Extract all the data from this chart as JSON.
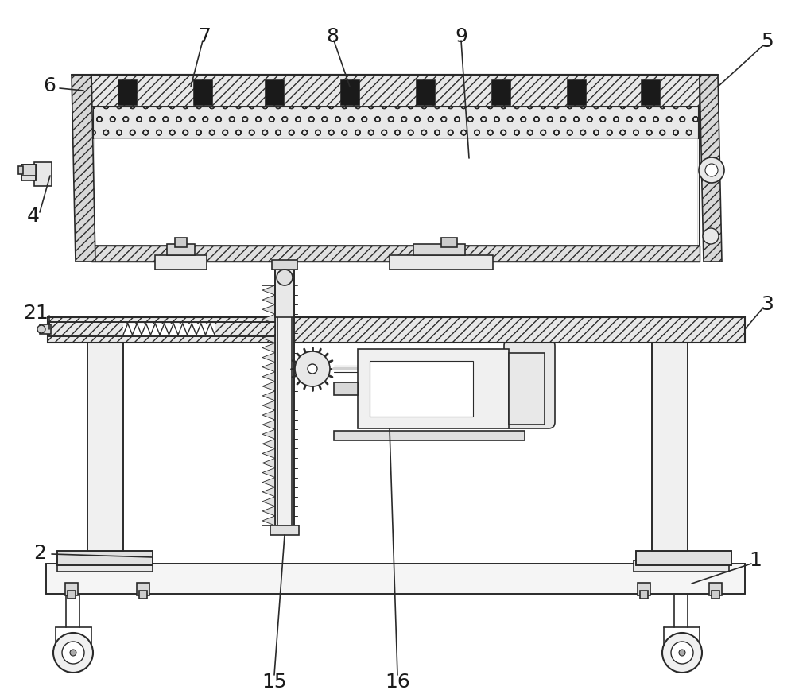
{
  "bg_color": "#ffffff",
  "line_color": "#2a2a2a",
  "lw": 1.2,
  "thin_lw": 0.7,
  "label_fs": 18,
  "label_color": "#1a1a1a"
}
